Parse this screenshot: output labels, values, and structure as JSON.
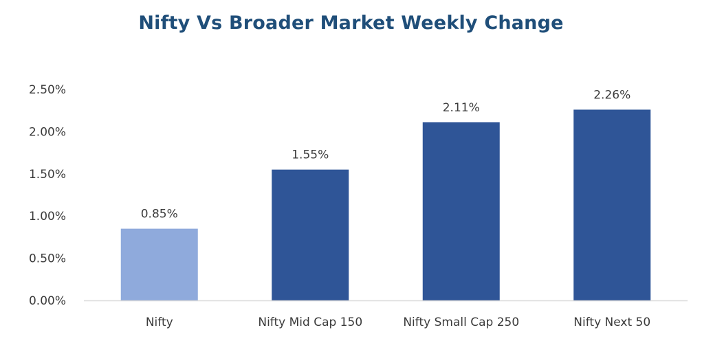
{
  "chart_data": {
    "type": "bar",
    "title": "Nifty Vs Broader Market Weekly Change",
    "xlabel": "",
    "ylabel": "",
    "categories": [
      "Nifty",
      "Nifty Mid Cap 150",
      "Nifty Small Cap 250",
      "Nifty Next 50"
    ],
    "values": [
      0.85,
      1.55,
      2.11,
      2.26
    ],
    "data_labels": [
      "0.85%",
      "1.55%",
      "2.11%",
      "2.26%"
    ],
    "bar_colors": [
      "#8faadc",
      "#2f5597",
      "#2f5597",
      "#2f5597"
    ],
    "ylim": [
      0,
      2.5
    ],
    "yticks": [
      0,
      0.5,
      1.0,
      1.5,
      2.0,
      2.5
    ],
    "ytick_labels": [
      "0.00%",
      "0.50%",
      "1.00%",
      "1.50%",
      "2.00%",
      "2.50%"
    ],
    "grid": false,
    "legend": "none"
  },
  "colors": {
    "title": "#1f4e79",
    "axis_line": "#d9d9d9",
    "highlight_bar": "#8faadc",
    "bar": "#2f5597"
  }
}
